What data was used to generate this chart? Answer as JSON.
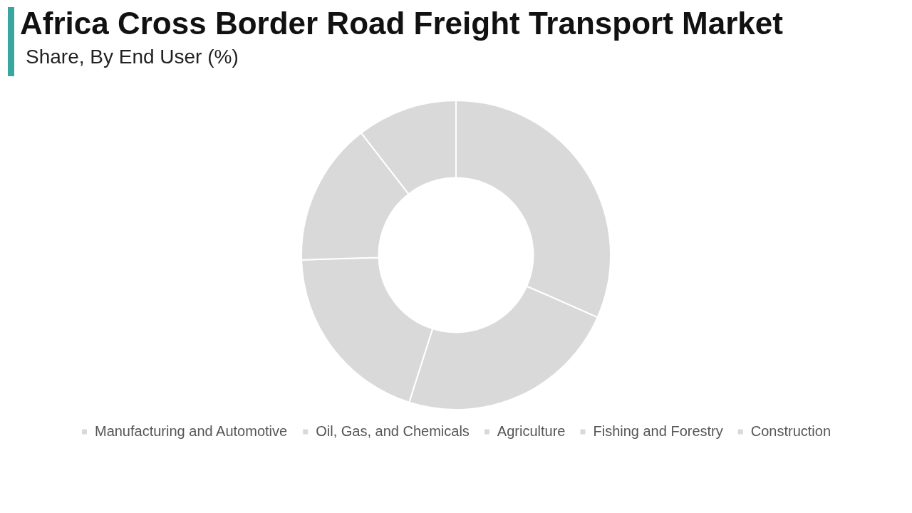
{
  "chart_data": {
    "type": "donut",
    "title": "Africa Cross Border Road Freight Transport Market",
    "subtitle": "Share, By End User (%)",
    "categories": [
      "Manufacturing and Automotive",
      "Oil, Gas, and Chemicals",
      "Agriculture",
      "Fishing and Forestry",
      "Construction"
    ],
    "values": [
      31.6,
      23.3,
      19.6,
      15,
      10.5
    ],
    "colors": [
      "#d9d9d9",
      "#d9d9d9",
      "#d9d9d9",
      "#d9d9d9",
      "#d9d9d9"
    ],
    "legend": "bottom"
  }
}
